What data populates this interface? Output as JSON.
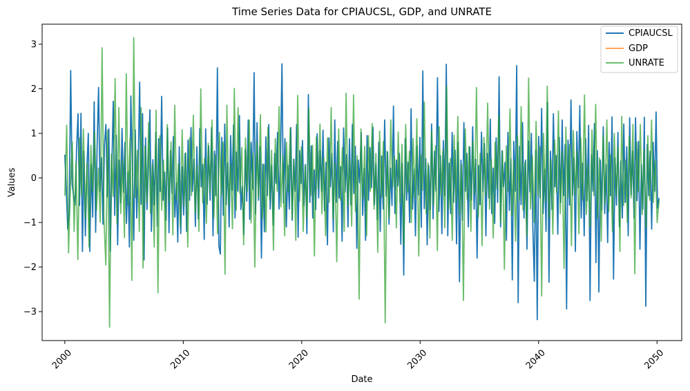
{
  "chart_data": {
    "type": "line",
    "title": "Time Series Data for CPIAUCSL, GDP, and UNRATE",
    "xlabel": "Date",
    "ylabel": "Values",
    "x_range": [
      "2000-01",
      "2050-03"
    ],
    "xlim": [
      "1998-02",
      "2052-02"
    ],
    "ylim": [
      -3.65,
      3.45
    ],
    "x_ticks": [
      "2000",
      "2010",
      "2020",
      "2030",
      "2040",
      "2050"
    ],
    "x_tick_years": [
      2000,
      2010,
      2020,
      2030,
      2040,
      2050
    ],
    "y_ticks": [
      "−3",
      "−2",
      "−1",
      "0",
      "1",
      "2",
      "3"
    ],
    "y_tick_values": [
      -3,
      -2,
      -1,
      0,
      1,
      2,
      3
    ],
    "x_tick_rotation_deg": 45,
    "grid": false,
    "legend_position": "top-right",
    "series": [
      {
        "name": "CPIAUCSL",
        "color": "#1f77b4",
        "alpha": 1.0,
        "values": [
          0.52,
          -0.29,
          -1.15,
          -0.74,
          2.41,
          -0.15,
          -0.4,
          -0.61,
          0.64,
          1.44,
          -0.62,
          1.45,
          -1.65,
          0.6,
          -1.3,
          0.19,
          1.0,
          -1.65,
          0.3,
          -0.88,
          1.71,
          -1.22,
          0.7,
          2.03,
          -0.3,
          0.45,
          -1.04,
          0.74,
          1.2,
          -0.42,
          1.1,
          -1.65,
          0.15,
          1.72,
          -0.84,
          0.96,
          -1.5,
          0.4,
          -0.56,
          1.11,
          -0.33,
          0.8,
          -1.02,
          0.13,
          -1.55,
          1.84,
          0.36,
          -1.4,
          1.08,
          -0.9,
          0.22,
          2.15,
          -0.59,
          1.44,
          -1.84,
          0.9,
          -0.71,
          0.3,
          1.53,
          -1.2,
          0.41,
          -0.61,
          1.02,
          -1.09,
          0.88,
          -0.3,
          1.83,
          -0.5,
          0.13,
          -0.95,
          1.12,
          -1.23,
          0.61,
          -0.34,
          0.93,
          -0.88,
          -0.12,
          -1.44,
          0.7,
          -1.25,
          0.25,
          -0.83,
          0.55,
          -1.2,
          0.85,
          -0.5,
          1.13,
          -0.3,
          0.42,
          -1.09,
          0.7,
          -0.92,
          1.11,
          -0.2,
          0.3,
          -1.38,
          1.1,
          -0.59,
          0.72,
          -0.5,
          1.13,
          -1.3,
          0.6,
          -0.4,
          2.47,
          -1.53,
          -1.71,
          0.91,
          -0.84,
          1.21,
          -0.6,
          0.34,
          -1.1,
          0.95,
          -0.28,
          1.19,
          -0.9,
          0.58,
          -0.3,
          1.4,
          -0.71,
          -0.2,
          -1.27,
          0.64,
          -0.52,
          1.3,
          -0.93,
          0.8,
          -0.25,
          2.36,
          -0.81,
          1.24,
          -0.5,
          0.7,
          -1.8,
          0.31,
          -1.21,
          0.92,
          -0.4,
          1.2,
          -0.7,
          0.28,
          -1.06,
          0.55,
          -0.12,
          1.02,
          -0.7,
          0.45,
          2.56,
          -0.56,
          0.88,
          -1.1,
          0.28,
          -0.7,
          1.13,
          -0.95,
          0.42,
          -0.3,
          1.2,
          -1.33,
          0.61,
          -0.12,
          0.84,
          -0.62,
          0.3,
          -1.25,
          1.87,
          -0.55,
          0.72,
          -0.9,
          0.18,
          -0.71,
          0.99,
          -0.45,
          0.61,
          -0.3,
          1.07,
          -0.74,
          0.35,
          -1.5,
          0.9,
          -0.2,
          0.55,
          -1.21,
          1.3,
          -0.55,
          0.82,
          -0.45,
          0.25,
          -1.42,
          1.12,
          -0.32,
          0.52,
          -1.1,
          0.88,
          -0.61,
          1.2,
          -0.35,
          0.71,
          -1.58,
          0.4,
          -0.11,
          1.02,
          -0.84,
          0.21,
          -1.4,
          0.95,
          -0.5,
          0.68,
          -0.22,
          1.14,
          -0.6,
          0.31,
          -0.93,
          0.8,
          -1.2,
          0.49,
          -0.7,
          1.3,
          -0.41,
          0.58,
          -1.04,
          0.22,
          -0.62,
          1.61,
          -0.8,
          0.4,
          -0.18,
          0.55,
          -1.49,
          0.33,
          -2.18,
          0.88,
          -0.5,
          0.35,
          -1.0,
          1.55,
          -0.7,
          0.2,
          -1.3,
          0.72,
          -0.38,
          0.91,
          -1.11,
          2.4,
          -0.69,
          0.43,
          -1.5,
          0.28,
          -0.71,
          1.21,
          -0.92,
          0.6,
          -0.3,
          2.25,
          -0.75,
          0.5,
          -1.25,
          0.84,
          -0.4,
          2.55,
          -1.3,
          0.33,
          -0.8,
          1.02,
          -0.55,
          0.62,
          -1.48,
          0.8,
          -2.33,
          0.4,
          -0.95,
          1.24,
          -0.3,
          0.55,
          -1.1,
          0.7,
          -0.5,
          1.15,
          -0.7,
          0.42,
          -1.8,
          0.28,
          -0.6,
          1.03,
          -0.31,
          0.77,
          -1.3,
          0.55,
          -0.45,
          1.32,
          -0.8,
          0.22,
          -1.02,
          0.9,
          -0.55,
          2.27,
          -1.1,
          0.61,
          -0.2,
          0.35,
          -1.4,
          1.02,
          -0.73,
          0.44,
          -2.29,
          0.82,
          -0.3,
          2.52,
          -2.8,
          0.71,
          -0.6,
          1.24,
          -0.9,
          0.4,
          -1.6,
          0.83,
          -0.31,
          1.0,
          -1.1,
          -2.32,
          0.62,
          -3.18,
          0.93,
          -0.45,
          1.56,
          -0.8,
          0.2,
          -1.2,
          1.7,
          -2.34,
          0.6,
          -0.71,
          1.44,
          -0.2,
          0.5,
          -1.26,
          0.91,
          -0.55,
          1.3,
          -0.4,
          0.75,
          -2.94,
          0.85,
          -0.61,
          1.75,
          -0.39,
          0.45,
          -1.65,
          1.04,
          -0.22,
          1.62,
          -0.9,
          0.33,
          -1.3,
          0.88,
          -0.51,
          1.18,
          -2.75,
          0.52,
          -0.3,
          1.22,
          -1.9,
          0.61,
          -2.56,
          0.4,
          -0.72,
          1.15,
          -0.8,
          0.3,
          -1.45,
          0.8,
          -0.4,
          1.37,
          -2.27,
          0.45,
          -0.61,
          1.02,
          -1.1,
          0.38,
          -0.9,
          1.21,
          -0.55,
          0.7,
          -1.3,
          1.35,
          -0.38,
          0.6,
          -0.9,
          1.35,
          -0.51,
          0.82,
          -1.6,
          0.3,
          -0.7,
          1.36,
          -2.88,
          0.75,
          -0.4,
          0.6,
          -1.15,
          0.8,
          -0.3,
          1.48,
          -0.68,
          -0.45
        ]
      },
      {
        "name": "GDP",
        "color": "#ff7f0e",
        "alpha": 0.7,
        "values": []
      },
      {
        "name": "UNRATE",
        "color": "#2ca02c",
        "alpha": 0.7,
        "values": [
          -0.4,
          1.18,
          -1.68,
          -0.2,
          0.8,
          -1.2,
          0.35,
          -1.83,
          0.9,
          -0.41,
          1.1,
          -0.9,
          0.32,
          -1.55,
          0.73,
          -0.3,
          1.03,
          -0.73,
          0.22,
          -0.99,
          2.92,
          -0.9,
          -1.95,
          1.07,
          -3.35,
          0.54,
          -0.42,
          2.23,
          -1.03,
          1.58,
          -0.8,
          0.4,
          -1.34,
          2.34,
          -0.61,
          0.9,
          -2.3,
          3.15,
          -0.44,
          0.62,
          -1.2,
          1.58,
          -2.02,
          0.72,
          -0.55,
          1.24,
          -0.8,
          0.3,
          -1.55,
          1.52,
          -2.58,
          0.95,
          -0.73,
          0.4,
          -1.64,
          1.2,
          -0.55,
          0.81,
          -1.28,
          1.63,
          -0.5,
          0.32,
          -1.1,
          1.08,
          -0.62,
          0.56,
          -1.55,
          0.9,
          -0.4,
          1.41,
          -0.8,
          0.26,
          -1.2,
          2.0,
          -0.56,
          0.44,
          -1.02,
          0.78,
          -0.33,
          1.3,
          -0.9,
          0.52,
          -1.25,
          1.02,
          -0.4,
          0.8,
          -2.16,
          1.63,
          -0.61,
          0.3,
          -1.14,
          2.01,
          -0.72,
          1.58,
          -0.35,
          0.68,
          -1.5,
          0.9,
          -0.3,
          1.3,
          -1.01,
          0.55,
          -2.0,
          0.81,
          -0.45,
          1.42,
          -0.92,
          0.3,
          -1.21,
          1.13,
          -0.5,
          0.62,
          -1.62,
          0.88,
          -0.3,
          1.6,
          -0.65,
          0.5,
          -1.3,
          0.8,
          -0.31,
          1.12,
          -0.92,
          0.42,
          -1.4,
          1.85,
          -0.52,
          0.7,
          -1.2,
          0.28,
          -0.89,
          1.55,
          -0.4,
          0.73,
          -1.75,
          0.92,
          -0.25,
          1.21,
          -0.8,
          0.45,
          -1.3,
          0.9,
          -0.55,
          1.58,
          -0.92,
          0.33,
          -1.88,
          1.1,
          -0.5,
          0.68,
          -1.2,
          1.9,
          -0.62,
          0.4,
          -1.08,
          1.86,
          -0.75,
          0.5,
          -2.72,
          1.1,
          -0.46,
          0.71,
          -1.3,
          0.95,
          -0.3,
          1.22,
          -0.7,
          0.55,
          -1.67,
          1.05,
          -0.43,
          0.82,
          -3.25,
          0.6,
          -0.9,
          1.3,
          -0.2,
          0.48,
          -1.12,
          1.03,
          -0.58,
          0.75,
          -1.5,
          1.2,
          -0.32,
          0.6,
          -1.0,
          0.88,
          -0.45,
          1.33,
          -1.75,
          0.52,
          -0.28,
          1.7,
          -0.8,
          0.34,
          -1.35,
          1.05,
          -0.6,
          0.72,
          -1.63,
          1.15,
          -0.4,
          0.62,
          -1.12,
          2.05,
          -0.7,
          0.44,
          -1.4,
          0.96,
          -0.55,
          1.38,
          -0.82,
          0.3,
          -2.75,
          1.1,
          -0.48,
          0.7,
          -1.2,
          0.83,
          -0.35,
          2.03,
          -0.88,
          0.55,
          -1.52,
          0.91,
          -0.4,
          1.68,
          -0.7,
          0.42,
          -1.35,
          0.8,
          -0.25,
          1.4,
          -1.0,
          0.6,
          -2.05,
          0.72,
          -0.3,
          1.55,
          -0.85,
          0.4,
          -1.42,
          0.95,
          -0.51,
          1.6,
          -0.72,
          0.35,
          -1.3,
          2.24,
          -0.7,
          0.5,
          -1.0,
          1.27,
          -0.4,
          0.7,
          -2.65,
          1.0,
          -0.52,
          2.06,
          -0.9,
          0.41,
          -1.26,
          0.85,
          -0.33,
          1.5,
          -0.8,
          0.6,
          -2.03,
          1.14,
          -0.45,
          0.75,
          -1.52,
          1.06,
          -0.38,
          0.6,
          -1.25,
          0.9,
          -0.5,
          1.86,
          -0.82,
          0.3,
          -1.1,
          1.08,
          -0.4,
          1.65,
          -0.9,
          0.45,
          -1.42,
          0.95,
          -0.58,
          1.3,
          -0.75,
          0.52,
          -1.2,
          1.0,
          -0.4,
          0.71,
          -1.65,
          1.38,
          -0.62,
          0.4,
          -1.0,
          0.92,
          -0.45,
          1.2,
          -2.15,
          0.8,
          -0.31,
          1.2,
          -0.82,
          0.63,
          -1.12,
          0.95,
          -0.5,
          1.3,
          -0.55,
          0.4,
          -1.0,
          -0.5
        ]
      }
    ]
  }
}
